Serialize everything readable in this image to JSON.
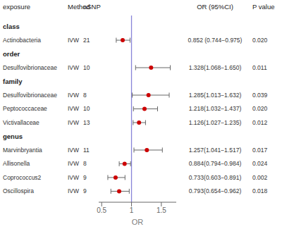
{
  "chart_data": {
    "type": "forest",
    "xlabel": "OR",
    "columns": [
      "exposure",
      "Method",
      "nSNP",
      "OR (95%CI)",
      "P value"
    ],
    "xlim": [
      0.45,
      1.75
    ],
    "xticks": [
      0.5,
      1,
      1.5
    ],
    "reference": 1,
    "color": "#cc0000",
    "rows": [
      {
        "label": "class",
        "is_header": true
      },
      {
        "label": "Actinobacteria",
        "method": "IVW",
        "nsnp": 21,
        "or": 0.852,
        "ci_low": 0.744,
        "ci_high": 0.975,
        "or_text": "0.852 (0.744−0.975)",
        "pval": "0.020"
      },
      {
        "label": "order",
        "is_header": true
      },
      {
        "label": "Desulfovibrionaceae",
        "method": "IVW",
        "nsnp": 10,
        "or": 1.328,
        "ci_low": 1.068,
        "ci_high": 1.65,
        "or_text": "1.328(1.068−1.650)",
        "pval": "0.011"
      },
      {
        "label": "family",
        "is_header": true
      },
      {
        "label": "Desulfovibrionaceae",
        "method": "IVW",
        "nsnp": 8,
        "or": 1.285,
        "ci_low": 1.013,
        "ci_high": 1.632,
        "or_text": "1.285(1.013−1.632)",
        "pval": "0.039"
      },
      {
        "label": "Peptococcaceae",
        "method": "IVW",
        "nsnp": 10,
        "or": 1.218,
        "ci_low": 1.032,
        "ci_high": 1.437,
        "or_text": "1.218(1.032−1.437)",
        "pval": "0.020"
      },
      {
        "label": "Victivallaceae",
        "method": "IVW",
        "nsnp": 13,
        "or": 1.126,
        "ci_low": 1.027,
        "ci_high": 1.235,
        "or_text": "1.126(1.027−1.235)",
        "pval": "0.012"
      },
      {
        "label": "genus",
        "is_header": true
      },
      {
        "label": "Marvinbryantia",
        "method": "IVW",
        "nsnp": 11,
        "or": 1.257,
        "ci_low": 1.041,
        "ci_high": 1.517,
        "or_text": "1.257(1.041−1.517)",
        "pval": "0.017"
      },
      {
        "label": "Allisonella",
        "method": "IVW",
        "nsnp": 8,
        "or": 0.884,
        "ci_low": 0.794,
        "ci_high": 0.984,
        "or_text": "0.884(0.794−0.984)",
        "pval": "0.024"
      },
      {
        "label": "Coprococcus2",
        "method": "IVW",
        "nsnp": 9,
        "or": 0.733,
        "ci_low": 0.603,
        "ci_high": 0.891,
        "or_text": "0.733(0.603−0.891)",
        "pval": "0.002"
      },
      {
        "label": "Oscillospira",
        "method": "IVW",
        "nsnp": 9,
        "or": 0.793,
        "ci_low": 0.654,
        "ci_high": 0.962,
        "or_text": "0.793(0.654−0.962)",
        "pval": "0.018"
      }
    ]
  }
}
